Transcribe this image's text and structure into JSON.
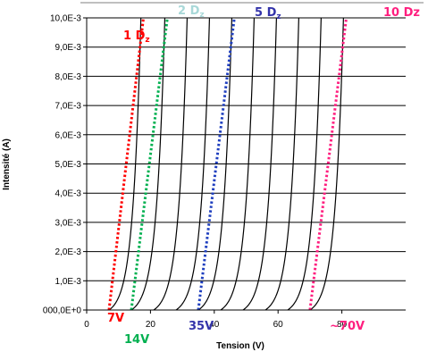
{
  "chart_data": {
    "type": "line",
    "title": "",
    "xlabel": "Tension (V)",
    "ylabel": "Intensité (A)",
    "xlim": [
      0,
      100
    ],
    "ylim": [
      0,
      0.01
    ],
    "grid": "horizontal",
    "x_ticks": [
      "0",
      "20",
      "40",
      "60",
      "80"
    ],
    "y_ticks": [
      "000,0E+0",
      "1,0E-3",
      "2,0E-3",
      "3,0E-3",
      "4,0E-3",
      "5,0E-3",
      "6,0E-3",
      "7,0E-3",
      "8,0E-3",
      "9,0E-3",
      "10,0E-3"
    ],
    "curve_zener_voltages": [
      7,
      14,
      21,
      28,
      35,
      42,
      49,
      56,
      63,
      70
    ],
    "curve_end_x": [
      17,
      24.5,
      31.5,
      38.5,
      45.5,
      52.5,
      59.5,
      66.5,
      73.5,
      80.5
    ],
    "tangent_lines": [
      {
        "label": "1 Dz",
        "color": "#ff0000",
        "x": [
          7,
          17.8
        ],
        "y": [
          0,
          0.01
        ]
      },
      {
        "label": "2 Dz",
        "color": "#00b050",
        "x": [
          14,
          25.3
        ],
        "y": [
          0,
          0.01
        ]
      },
      {
        "label": "5 Dz",
        "color": "#1f3fbf",
        "x": [
          35,
          46.3
        ],
        "y": [
          0,
          0.01
        ]
      },
      {
        "label": "10 Dz",
        "color": "#ff1f7f",
        "x": [
          70,
          81.4
        ],
        "y": [
          0,
          0.01
        ]
      }
    ]
  },
  "annotations": {
    "top_labels": [
      {
        "main": "1 D",
        "sub": "z",
        "color": "#ff0000"
      },
      {
        "main": "2 D",
        "sub": "z",
        "color": "#a8d8d8"
      },
      {
        "main": "5 D",
        "sub": "z",
        "color": "#3333aa"
      },
      {
        "main": "10 Dz",
        "sub": "",
        "color": "#ff1f7f"
      }
    ],
    "voltage_labels": [
      {
        "text": "7V",
        "color": "#ff0000"
      },
      {
        "text": "14V",
        "color": "#00b050"
      },
      {
        "text": "35V",
        "color": "#3333aa"
      },
      {
        "text": "~70V",
        "color": "#ff1f7f"
      }
    ]
  }
}
